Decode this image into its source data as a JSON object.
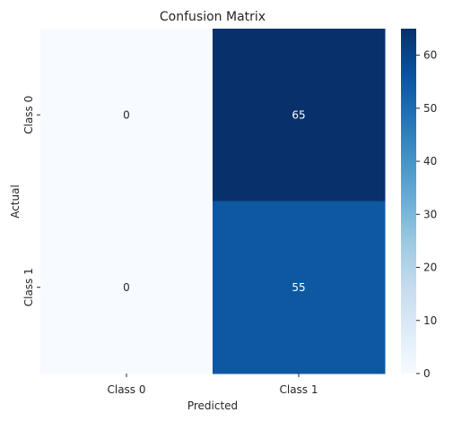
{
  "chart_data": {
    "type": "heatmap",
    "title": "Confusion Matrix",
    "xlabel": "Predicted",
    "ylabel": "Actual",
    "x_categories": [
      "Class 0",
      "Class 1"
    ],
    "y_categories": [
      "Class 0",
      "Class 1"
    ],
    "values": [
      [
        0,
        65
      ],
      [
        0,
        55
      ]
    ],
    "colorbar": {
      "min": 0,
      "max": 65,
      "ticks": [
        0,
        10,
        20,
        30,
        40,
        50,
        60
      ],
      "colormap": "Blues",
      "colors": [
        "#f7fbff",
        "#deebf7",
        "#c6dbef",
        "#9ecae1",
        "#6baed6",
        "#4292c6",
        "#2171b5",
        "#08519c",
        "#08306b"
      ]
    },
    "annotation_colors": {
      "light_cell": "#262626",
      "dark_cell": "#ffffff"
    }
  }
}
